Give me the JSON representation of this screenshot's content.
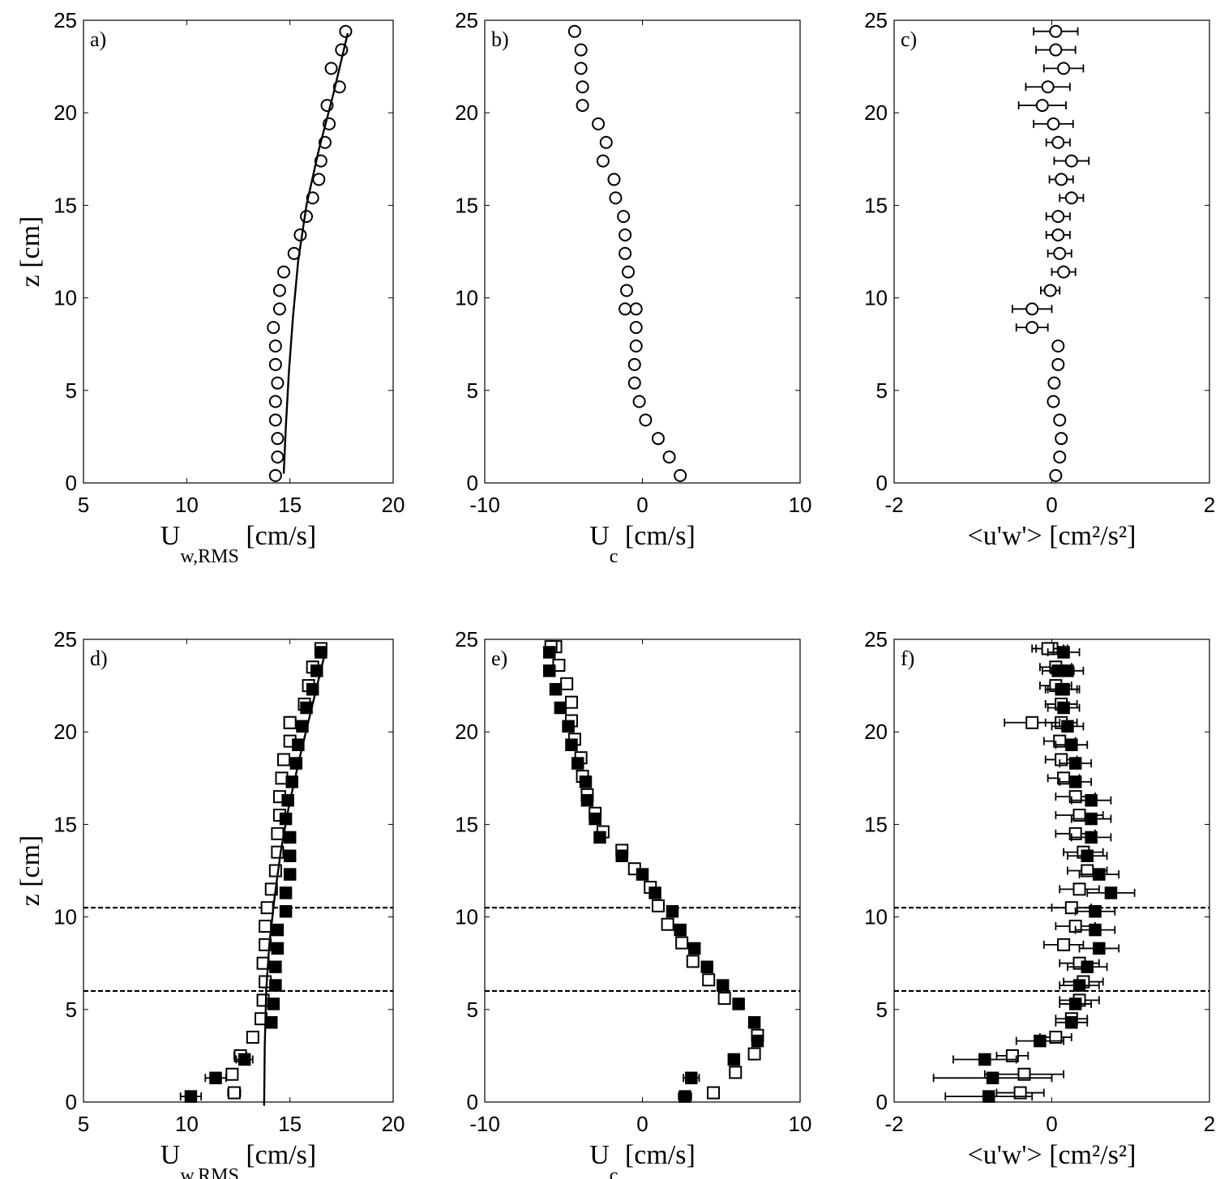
{
  "figure": {
    "panels": [
      {
        "id": "a",
        "panel_label": "a)",
        "type": "scatter",
        "xlim": [
          5,
          20
        ],
        "ylim": [
          0,
          25
        ],
        "xticks": [
          5,
          10,
          15,
          20
        ],
        "yticks": [
          0,
          5,
          10,
          15,
          20,
          25
        ],
        "xlabel_main": "U",
        "xlabel_sub": "w,RMS",
        "xlabel_unit": "[cm/s]",
        "ylabel": "z [cm]",
        "series": [
          {
            "marker": "circle-open",
            "x": [
              14.3,
              14.4,
              14.4,
              14.3,
              14.3,
              14.4,
              14.3,
              14.3,
              14.2,
              14.5,
              14.5,
              14.7,
              15.2,
              15.5,
              15.8,
              16.1,
              16.4,
              16.5,
              16.7,
              16.9,
              16.8,
              17.4,
              17.0,
              17.5,
              17.7
            ],
            "y": [
              0.4,
              1.4,
              2.4,
              3.4,
              4.4,
              5.4,
              6.4,
              7.4,
              8.4,
              9.4,
              10.4,
              11.4,
              12.4,
              13.4,
              14.4,
              15.4,
              16.4,
              17.4,
              18.4,
              19.4,
              20.4,
              21.4,
              22.4,
              23.4,
              24.4
            ]
          },
          {
            "marker": "line",
            "x": [
              14.7,
              14.8,
              14.95,
              15.15,
              15.4,
              15.8,
              16.4,
              17.1,
              17.8
            ],
            "y": [
              0.5,
              3,
              6,
              9,
              12,
              15,
              18,
              21,
              24.3
            ]
          }
        ],
        "hlines": []
      },
      {
        "id": "b",
        "panel_label": "b)",
        "type": "scatter",
        "xlim": [
          -10,
          10
        ],
        "ylim": [
          0,
          25
        ],
        "xticks": [
          -10,
          0,
          10
        ],
        "yticks": [
          0,
          5,
          10,
          15,
          20,
          25
        ],
        "xlabel_main": "U",
        "xlabel_sub": "c",
        "xlabel_unit": "[cm/s]",
        "ylabel": "",
        "series": [
          {
            "marker": "circle-open",
            "x": [
              2.4,
              1.7,
              1.0,
              0.2,
              -0.2,
              -0.5,
              -0.5,
              -0.4,
              -0.4,
              -0.4,
              -1.1,
              -1.0,
              -0.9,
              -1.1,
              -1.1,
              -1.2,
              -1.7,
              -1.8,
              -2.5,
              -2.3,
              -2.8,
              -3.8,
              -3.8,
              -3.9,
              -3.9,
              -4.3
            ],
            "y": [
              0.4,
              1.4,
              2.4,
              3.4,
              4.4,
              5.4,
              6.4,
              7.4,
              8.4,
              9.4,
              9.4,
              10.4,
              11.4,
              12.4,
              13.4,
              14.4,
              15.4,
              16.4,
              17.4,
              18.4,
              19.4,
              20.4,
              21.4,
              22.4,
              23.4,
              24.4
            ]
          }
        ],
        "hlines": []
      },
      {
        "id": "c",
        "panel_label": "c)",
        "type": "scatter",
        "xlim": [
          -2,
          2
        ],
        "ylim": [
          0,
          25
        ],
        "xticks": [
          -2,
          0,
          2
        ],
        "yticks": [
          0,
          5,
          10,
          15,
          20,
          25
        ],
        "xlabel_main": "<u'w'>",
        "xlabel_unit": "[cm²/s²]",
        "ylabel": "",
        "series": [
          {
            "marker": "circle-open",
            "x": [
              0.05,
              0.1,
              0.12,
              0.1,
              0.02,
              0.03,
              0.08,
              0.08,
              -0.25,
              -0.25,
              -0.02,
              0.15,
              0.1,
              0.08,
              0.08,
              0.25,
              0.12,
              0.25,
              0.08,
              0.02,
              -0.12,
              -0.05,
              0.15,
              0.05,
              0.05
            ],
            "y": [
              0.4,
              1.4,
              2.4,
              3.4,
              4.4,
              5.4,
              6.4,
              7.4,
              8.4,
              9.4,
              10.4,
              11.4,
              12.4,
              13.4,
              14.4,
              15.4,
              16.4,
              17.4,
              18.4,
              19.4,
              20.4,
              21.4,
              22.4,
              23.4,
              24.4
            ],
            "xerr": [
              0.04,
              0.06,
              0.06,
              0.05,
              0.04,
              0.05,
              0.06,
              0.06,
              0.2,
              0.25,
              0.12,
              0.15,
              0.15,
              0.15,
              0.15,
              0.15,
              0.15,
              0.22,
              0.15,
              0.25,
              0.3,
              0.28,
              0.25,
              0.25,
              0.28
            ]
          }
        ],
        "hlines": []
      },
      {
        "id": "d",
        "panel_label": "d)",
        "type": "scatter",
        "xlim": [
          5,
          20
        ],
        "ylim": [
          0,
          25
        ],
        "xticks": [
          5,
          10,
          15,
          20
        ],
        "yticks": [
          0,
          5,
          10,
          15,
          20,
          25
        ],
        "xlabel_main": "U",
        "xlabel_sub": "w,RMS",
        "xlabel_unit": "[cm/s]",
        "ylabel": "z [cm]",
        "series": [
          {
            "marker": "square-open",
            "x": [
              12.3,
              12.2,
              12.6,
              13.2,
              13.6,
              13.7,
              13.8,
              13.7,
              13.8,
              13.8,
              13.9,
              14.1,
              14.3,
              14.4,
              14.4,
              14.5,
              14.5,
              14.6,
              14.7,
              15.0,
              15.0,
              15.0,
              15.7,
              15.9,
              16.1,
              16.5
            ],
            "y": [
              0.5,
              1.5,
              2.5,
              3.5,
              4.5,
              5.5,
              6.5,
              7.5,
              8.5,
              9.5,
              10.5,
              11.5,
              12.5,
              13.5,
              14.5,
              15.5,
              16.5,
              17.5,
              18.5,
              19.5,
              20.5,
              20.5,
              21.5,
              22.5,
              23.5,
              24.5
            ],
            "xerr": [
              0.3,
              0.0,
              0.3,
              0.0,
              0,
              0,
              0,
              0,
              0,
              0,
              0,
              0,
              0,
              0,
              0,
              0,
              0,
              0,
              0,
              0,
              0,
              0,
              0,
              0,
              0,
              0
            ]
          },
          {
            "marker": "square-filled",
            "x": [
              10.2,
              11.4,
              12.8,
              14.1,
              14.2,
              14.3,
              14.3,
              14.4,
              14.4,
              14.8,
              14.8,
              15.0,
              15.0,
              15.0,
              14.8,
              14.9,
              15.1,
              15.3,
              15.4,
              15.6,
              15.8,
              16.1,
              16.3,
              16.5
            ],
            "y": [
              0.3,
              1.3,
              2.3,
              4.3,
              5.3,
              6.3,
              7.3,
              8.3,
              9.3,
              10.3,
              11.3,
              12.3,
              13.3,
              14.3,
              15.3,
              16.3,
              17.3,
              18.3,
              19.3,
              20.3,
              21.3,
              22.3,
              23.3,
              24.3
            ],
            "xerr": [
              0.5,
              0.5,
              0.4,
              0,
              0,
              0,
              0,
              0,
              0,
              0,
              0,
              0,
              0,
              0,
              0,
              0,
              0,
              0,
              0,
              0,
              0,
              0,
              0,
              0
            ]
          },
          {
            "marker": "line",
            "x": [
              13.75,
              13.78,
              13.85,
              14.0,
              14.25,
              14.55,
              14.95,
              15.45,
              16.1,
              16.75
            ],
            "y": [
              -0.2,
              3,
              6,
              8.5,
              11,
              13.5,
              16,
              18.5,
              21.5,
              24.5
            ]
          }
        ],
        "hlines": [
          10.5,
          6.0
        ]
      },
      {
        "id": "e",
        "panel_label": "e)",
        "type": "scatter",
        "xlim": [
          -10,
          10
        ],
        "ylim": [
          0,
          25
        ],
        "xticks": [
          -10,
          0,
          10
        ],
        "yticks": [
          0,
          5,
          10,
          15,
          20,
          25
        ],
        "xlabel_main": "U",
        "xlabel_sub": "c",
        "xlabel_unit": "[cm/s]",
        "ylabel": "",
        "series": [
          {
            "marker": "square-open",
            "x": [
              4.5,
              5.9,
              7.1,
              7.3,
              5.2,
              4.2,
              3.2,
              2.5,
              1.6,
              1.0,
              0.5,
              -0.5,
              -1.3,
              -2.5,
              -3.0,
              -3.5,
              -3.8,
              -3.9,
              -4.3,
              -4.5,
              -4.5,
              -4.8,
              -5.3,
              -5.5,
              -5.8
            ],
            "y": [
              0.5,
              1.6,
              2.6,
              3.6,
              5.6,
              6.6,
              7.6,
              8.6,
              9.6,
              10.6,
              11.6,
              12.6,
              13.6,
              14.6,
              15.6,
              16.6,
              17.6,
              18.6,
              19.6,
              20.6,
              21.6,
              22.6,
              23.6,
              24.6,
              24.6
            ]
          },
          {
            "marker": "square-filled",
            "x": [
              2.7,
              3.1,
              5.8,
              7.3,
              7.1,
              6.1,
              5.1,
              4.1,
              3.3,
              2.4,
              1.9,
              0.8,
              0.0,
              -1.3,
              -2.7,
              -3.0,
              -3.5,
              -3.6,
              -4.1,
              -4.5,
              -4.7,
              -5.2,
              -5.5,
              -5.9,
              -5.9
            ],
            "y": [
              0.3,
              1.3,
              2.3,
              3.3,
              4.3,
              5.3,
              6.3,
              7.3,
              8.3,
              9.3,
              10.3,
              11.3,
              12.3,
              13.3,
              14.3,
              15.3,
              16.3,
              17.3,
              18.3,
              19.3,
              20.3,
              21.3,
              22.3,
              23.3,
              24.3
            ],
            "xerr": [
              0.4,
              0.5,
              0.3,
              0,
              0,
              0,
              0,
              0,
              0,
              0,
              0,
              0,
              0,
              0,
              0,
              0,
              0,
              0,
              0,
              0,
              0,
              0,
              0,
              0,
              0
            ]
          }
        ],
        "hlines": [
          10.5,
          6.0
        ]
      },
      {
        "id": "f",
        "panel_label": "f)",
        "type": "scatter",
        "xlim": [
          -2,
          2
        ],
        "ylim": [
          0,
          25
        ],
        "xticks": [
          -2,
          0,
          2
        ],
        "yticks": [
          0,
          5,
          10,
          15,
          20,
          25
        ],
        "xlabel_main": "<u'w'>",
        "xlabel_unit": "[cm²/s²]",
        "ylabel": "",
        "series": [
          {
            "marker": "square-open",
            "x": [
              -0.4,
              -0.35,
              -0.5,
              0.05,
              0.25,
              0.35,
              0.4,
              0.35,
              0.15,
              0.3,
              0.25,
              0.35,
              0.45,
              0.4,
              0.3,
              0.35,
              0.3,
              0.15,
              0.12,
              0.1,
              0.12,
              0.12,
              -0.25,
              0.05,
              0.05,
              0.0,
              -0.05
            ],
            "y": [
              0.5,
              1.5,
              2.5,
              3.5,
              4.5,
              5.5,
              6.5,
              7.5,
              8.5,
              9.5,
              10.5,
              11.5,
              12.5,
              13.5,
              14.5,
              15.5,
              16.5,
              17.5,
              18.5,
              19.5,
              20.5,
              21.5,
              20.5,
              22.5,
              23.5,
              24.5,
              24.5
            ],
            "xerr": [
              0.3,
              0.5,
              0.2,
              0.2,
              0.2,
              0.25,
              0.25,
              0.25,
              0.25,
              0.25,
              0.25,
              0.25,
              0.25,
              0.25,
              0.25,
              0.3,
              0.25,
              0.2,
              0.2,
              0.2,
              0.2,
              0.2,
              0.35,
              0.2,
              0.2,
              0.2,
              0.2
            ]
          },
          {
            "marker": "square-filled",
            "x": [
              -0.8,
              -0.75,
              -0.85,
              -0.15,
              0.25,
              0.3,
              0.35,
              0.45,
              0.6,
              0.55,
              0.55,
              0.75,
              0.6,
              0.45,
              0.5,
              0.5,
              0.5,
              0.3,
              0.3,
              0.25,
              0.2,
              0.15,
              0.15,
              0.2,
              0.15,
              0.08,
              0.12
            ],
            "y": [
              0.3,
              1.3,
              2.3,
              3.3,
              4.3,
              5.3,
              6.3,
              7.3,
              8.3,
              9.3,
              10.3,
              11.3,
              12.3,
              13.3,
              14.3,
              15.3,
              16.3,
              17.3,
              18.3,
              19.3,
              20.3,
              21.3,
              22.3,
              23.3,
              24.3,
              23.3,
              22.3
            ],
            "xerr": [
              0.55,
              0.75,
              0.4,
              0.3,
              0.2,
              0.2,
              0.25,
              0.25,
              0.25,
              0.25,
              0.25,
              0.3,
              0.25,
              0.25,
              0.25,
              0.25,
              0.25,
              0.2,
              0.2,
              0.2,
              0.2,
              0.2,
              0.2,
              0.2,
              0.2,
              0.2,
              0.2
            ]
          }
        ],
        "hlines": [
          10.5,
          6.0
        ]
      }
    ]
  },
  "chart_data": [
    {
      "type": "scatter",
      "panel": "a)",
      "xlabel": "U w,RMS [cm/s]",
      "ylabel": "z [cm]",
      "xlim": [
        5,
        20
      ],
      "ylim": [
        0,
        25
      ]
    },
    {
      "type": "scatter",
      "panel": "b)",
      "xlabel": "U c [cm/s]",
      "ylabel": "",
      "xlim": [
        -10,
        10
      ],
      "ylim": [
        0,
        25
      ]
    },
    {
      "type": "scatter",
      "panel": "c)",
      "xlabel": "<u'w'> [cm²/s²]",
      "ylabel": "",
      "xlim": [
        -2,
        2
      ],
      "ylim": [
        0,
        25
      ]
    },
    {
      "type": "scatter",
      "panel": "d)",
      "xlabel": "U w,RMS [cm/s]",
      "ylabel": "z [cm]",
      "xlim": [
        5,
        20
      ],
      "ylim": [
        0,
        25
      ]
    },
    {
      "type": "scatter",
      "panel": "e)",
      "xlabel": "U c [cm/s]",
      "ylabel": "",
      "xlim": [
        -10,
        10
      ],
      "ylim": [
        0,
        25
      ]
    },
    {
      "type": "scatter",
      "panel": "f)",
      "xlabel": "<u'w'> [cm²/s²]",
      "ylabel": "",
      "xlim": [
        -2,
        2
      ],
      "ylim": [
        0,
        25
      ]
    }
  ]
}
